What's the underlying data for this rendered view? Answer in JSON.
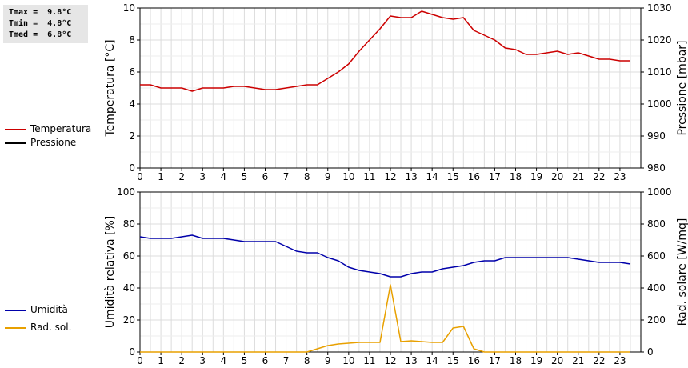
{
  "stats": {
    "tmax": "Tmax =  9.8°C",
    "tmin": "Tmin =  4.8°C",
    "tmed": "Tmed =  6.8°C"
  },
  "legend_top": [
    {
      "label": "Temperatura",
      "color": "#cc0000"
    },
    {
      "label": "Pressione",
      "color": "#000000"
    }
  ],
  "legend_bottom": [
    {
      "label": "Umidità",
      "color": "#0000aa"
    },
    {
      "label": "Rad. sol.",
      "color": "#e8a000"
    }
  ],
  "chart_data": [
    {
      "type": "line",
      "ylabel": "Temperatura [°C]",
      "y2label": "Pressione [mbar]",
      "ylim": [
        0,
        10
      ],
      "y2lim": [
        980,
        1030
      ],
      "xlim": [
        0,
        24
      ],
      "yticks": [
        0,
        2,
        4,
        6,
        8,
        10
      ],
      "y2ticks": [
        980,
        990,
        1000,
        1010,
        1020,
        1030
      ],
      "xticks": [
        0,
        1,
        2,
        3,
        4,
        5,
        6,
        7,
        8,
        9,
        10,
        11,
        12,
        13,
        14,
        15,
        16,
        17,
        18,
        19,
        20,
        21,
        22,
        23
      ],
      "grid": true,
      "series": [
        {
          "name": "Temperatura",
          "color": "#cc0000",
          "axis": "left",
          "x": [
            0,
            0.5,
            1,
            1.5,
            2,
            2.5,
            3,
            3.5,
            4,
            4.5,
            5,
            5.5,
            6,
            6.5,
            7,
            7.5,
            8,
            8.5,
            9,
            9.5,
            10,
            10.5,
            11,
            11.5,
            12,
            12.5,
            13,
            13.5,
            14,
            14.5,
            15,
            15.5,
            16,
            16.5,
            17,
            17.5,
            18,
            18.5,
            19,
            19.5,
            20,
            20.5,
            21,
            21.5,
            22,
            22.5,
            23,
            23.5
          ],
          "y": [
            5.2,
            5.2,
            5.0,
            5.0,
            5.0,
            4.8,
            5.0,
            5.0,
            5.0,
            5.1,
            5.1,
            5.0,
            4.9,
            4.9,
            5.0,
            5.1,
            5.2,
            5.2,
            5.6,
            6.0,
            6.5,
            7.3,
            8.0,
            8.7,
            9.5,
            9.4,
            9.4,
            9.8,
            9.6,
            9.4,
            9.3,
            9.4,
            8.6,
            8.3,
            8.0,
            7.5,
            7.4,
            7.1,
            7.1,
            7.2,
            7.3,
            7.1,
            7.2,
            7.0,
            6.8,
            6.8,
            6.7,
            6.7
          ]
        }
      ]
    },
    {
      "type": "line",
      "ylabel": "Umidità relativa [%]",
      "y2label": "Rad. solare [W/mq]",
      "ylim": [
        0,
        100
      ],
      "y2lim": [
        0,
        1000
      ],
      "xlim": [
        0,
        24
      ],
      "yticks": [
        0,
        20,
        40,
        60,
        80,
        100
      ],
      "y2ticks": [
        0,
        200,
        400,
        600,
        800,
        1000
      ],
      "xticks": [
        0,
        1,
        2,
        3,
        4,
        5,
        6,
        7,
        8,
        9,
        10,
        11,
        12,
        13,
        14,
        15,
        16,
        17,
        18,
        19,
        20,
        21,
        22,
        23
      ],
      "grid": true,
      "series": [
        {
          "name": "Umidità",
          "color": "#0000aa",
          "axis": "left",
          "x": [
            0,
            0.5,
            1,
            1.5,
            2,
            2.5,
            3,
            3.5,
            4,
            4.5,
            5,
            5.5,
            6,
            6.5,
            7,
            7.5,
            8,
            8.5,
            9,
            9.5,
            10,
            10.5,
            11,
            11.5,
            12,
            12.5,
            13,
            13.5,
            14,
            14.5,
            15,
            15.5,
            16,
            16.5,
            17,
            17.5,
            18,
            18.5,
            19,
            19.5,
            20,
            20.5,
            21,
            21.5,
            22,
            22.5,
            23,
            23.5
          ],
          "y": [
            72,
            71,
            71,
            71,
            72,
            73,
            71,
            71,
            71,
            70,
            69,
            69,
            69,
            69,
            66,
            63,
            62,
            62,
            59,
            57,
            53,
            51,
            50,
            49,
            47,
            47,
            49,
            50,
            50,
            52,
            53,
            54,
            56,
            57,
            57,
            59,
            59,
            59,
            59,
            59,
            59,
            59,
            58,
            57,
            56,
            56,
            56,
            55
          ]
        },
        {
          "name": "Rad. sol.",
          "color": "#e8a000",
          "axis": "right",
          "x": [
            0,
            0.5,
            1,
            1.5,
            2,
            2.5,
            3,
            3.5,
            4,
            4.5,
            5,
            5.5,
            6,
            6.5,
            7,
            7.5,
            8,
            8.5,
            9,
            9.5,
            10,
            10.5,
            11,
            11.5,
            12,
            12.5,
            13,
            13.5,
            14,
            14.5,
            15,
            15.5,
            16,
            16.5,
            17,
            17.5,
            18,
            18.5,
            19,
            19.5,
            20,
            20.5,
            21,
            21.5,
            22,
            22.5,
            23,
            23.5
          ],
          "y": [
            0,
            0,
            0,
            0,
            0,
            0,
            0,
            0,
            0,
            0,
            0,
            0,
            0,
            0,
            0,
            0,
            0,
            20,
            40,
            50,
            55,
            60,
            60,
            60,
            420,
            65,
            70,
            65,
            60,
            60,
            150,
            160,
            20,
            0,
            0,
            0,
            0,
            0,
            0,
            0,
            0,
            0,
            0,
            0,
            0,
            0,
            0,
            0
          ]
        }
      ]
    }
  ]
}
